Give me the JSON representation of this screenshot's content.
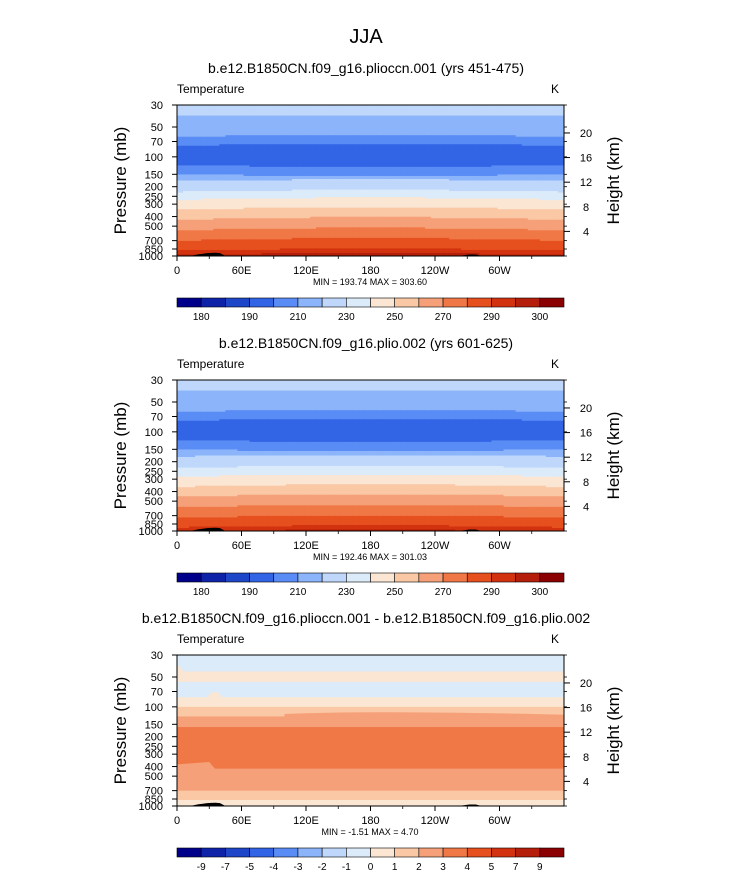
{
  "page_title": "JJA",
  "chart_data": [
    {
      "type": "heatmap",
      "title": "b.e12.B1850CN.f09_g16.plioccn.001 (yrs 451-475)",
      "subtitle_left": "Temperature",
      "units": "K",
      "ylabel_left": "Pressure  (mb)",
      "ylabel_right": "Height  (km)",
      "x_ticks": [
        "0",
        "60E",
        "120E",
        "180",
        "120W",
        "60W"
      ],
      "x_tick_values": [
        0,
        60,
        120,
        180,
        240,
        300
      ],
      "xlim": [
        0,
        360
      ],
      "p_ticks": [
        "30",
        "50",
        "70",
        "100",
        "150",
        "200",
        "250",
        "300",
        "400",
        "500",
        "700",
        "850",
        "1000"
      ],
      "p_tick_values": [
        30,
        50,
        70,
        100,
        150,
        200,
        250,
        300,
        400,
        500,
        700,
        850,
        1000
      ],
      "ylim_mb": [
        1000,
        30
      ],
      "h_ticks": [
        "20",
        "16",
        "12",
        "8",
        "4"
      ],
      "h_tick_values": [
        20,
        16,
        12,
        8,
        4
      ],
      "minmax_label": "MIN = 193.74  MAX = 303.60",
      "colorbar_labels": [
        "180",
        "190",
        "210",
        "230",
        "250",
        "270",
        "290",
        "300"
      ],
      "colorbar_colors": [
        "#00008b",
        "#0f23a8",
        "#1e46c8",
        "#3264e6",
        "#5a8cf5",
        "#8cb4fa",
        "#bed7fa",
        "#dcebfa",
        "#fae6d2",
        "#fac8a5",
        "#f5a078",
        "#f07846",
        "#e6501e",
        "#d2320f",
        "#b41e0a",
        "#8b0000"
      ],
      "profile_levels_mb": [
        30,
        50,
        60,
        70,
        80,
        100,
        120,
        150,
        180,
        200,
        230,
        260,
        300,
        350,
        400,
        450,
        500,
        600,
        700,
        800,
        900,
        1000
      ],
      "profile_values_K": [
        222,
        217,
        212,
        205,
        198,
        196,
        200,
        210,
        222,
        224,
        231,
        238,
        245,
        251,
        257,
        262,
        266,
        274,
        280,
        285,
        291,
        296
      ],
      "profile_amp": 4,
      "topo": {
        "lon": [
          10,
          15,
          20,
          24,
          28,
          32,
          36,
          40,
          45,
          75,
          82,
          260,
          266,
          272,
          278,
          282,
          300,
          303
        ],
        "p": [
          1000,
          985,
          960,
          950,
          935,
          930,
          928,
          935,
          1000,
          1000,
          990,
          1000,
          985,
          965,
          965,
          990,
          1000,
          990
        ]
      }
    },
    {
      "type": "heatmap",
      "title": "b.e12.B1850CN.f09_g16.plio.002 (yrs 601-625)",
      "subtitle_left": "Temperature",
      "units": "K",
      "ylabel_left": "Pressure  (mb)",
      "ylabel_right": "Height  (km)",
      "x_ticks": [
        "0",
        "60E",
        "120E",
        "180",
        "120W",
        "60W"
      ],
      "x_tick_values": [
        0,
        60,
        120,
        180,
        240,
        300
      ],
      "xlim": [
        0,
        360
      ],
      "p_ticks": [
        "30",
        "50",
        "70",
        "100",
        "150",
        "200",
        "250",
        "300",
        "400",
        "500",
        "700",
        "850",
        "1000"
      ],
      "p_tick_values": [
        30,
        50,
        70,
        100,
        150,
        200,
        250,
        300,
        400,
        500,
        700,
        850,
        1000
      ],
      "ylim_mb": [
        1000,
        30
      ],
      "h_ticks": [
        "20",
        "16",
        "12",
        "8",
        "4"
      ],
      "h_tick_values": [
        20,
        16,
        12,
        8,
        4
      ],
      "minmax_label": "MIN = 192.46  MAX = 301.03",
      "colorbar_labels": [
        "180",
        "190",
        "210",
        "230",
        "250",
        "270",
        "290",
        "300"
      ],
      "colorbar_colors": [
        "#00008b",
        "#0f23a8",
        "#1e46c8",
        "#3264e6",
        "#5a8cf5",
        "#8cb4fa",
        "#bed7fa",
        "#dcebfa",
        "#fae6d2",
        "#fac8a5",
        "#f5a078",
        "#f07846",
        "#e6501e",
        "#d2320f",
        "#b41e0a",
        "#8b0000"
      ],
      "profile_levels_mb": [
        30,
        50,
        60,
        70,
        80,
        100,
        120,
        150,
        180,
        200,
        230,
        260,
        300,
        350,
        400,
        450,
        500,
        600,
        700,
        800,
        900,
        1000
      ],
      "profile_values_K": [
        222,
        217,
        212,
        205,
        198,
        196,
        200,
        210,
        221,
        223,
        230,
        236,
        243,
        249,
        255,
        260,
        264,
        272,
        278,
        283,
        289,
        294
      ],
      "profile_amp": 4,
      "topo": {
        "lon": [
          10,
          15,
          20,
          24,
          28,
          32,
          36,
          40,
          45,
          75,
          82,
          260,
          266,
          272,
          278,
          282,
          300,
          303
        ],
        "p": [
          1000,
          985,
          960,
          950,
          935,
          930,
          928,
          935,
          1000,
          1000,
          990,
          1000,
          985,
          965,
          965,
          990,
          1000,
          990
        ]
      }
    },
    {
      "type": "heatmap",
      "title": "b.e12.B1850CN.f09_g16.plioccn.001 - b.e12.B1850CN.f09_g16.plio.002",
      "subtitle_left": "Temperature",
      "units": "K",
      "ylabel_left": "Pressure  (mb)",
      "ylabel_right": "Height  (km)",
      "x_ticks": [
        "0",
        "60E",
        "120E",
        "180",
        "120W",
        "60W"
      ],
      "x_tick_values": [
        0,
        60,
        120,
        180,
        240,
        300
      ],
      "xlim": [
        0,
        360
      ],
      "p_ticks": [
        "30",
        "50",
        "70",
        "100",
        "150",
        "200",
        "250",
        "300",
        "400",
        "500",
        "700",
        "850",
        "1000"
      ],
      "p_tick_values": [
        30,
        50,
        70,
        100,
        150,
        200,
        250,
        300,
        400,
        500,
        700,
        850,
        1000
      ],
      "ylim_mb": [
        1000,
        30
      ],
      "h_ticks": [
        "20",
        "16",
        "12",
        "8",
        "4"
      ],
      "h_tick_values": [
        20,
        16,
        12,
        8,
        4
      ],
      "minmax_label": "MIN =  -1.51  MAX =   4.70",
      "colorbar_labels": [
        "-9",
        "-7",
        "-5",
        "-4",
        "-3",
        "-2",
        "-1",
        "0",
        "1",
        "2",
        "3",
        "4",
        "5",
        "7",
        "9"
      ],
      "colorbar_colors": [
        "#00008b",
        "#0f23a8",
        "#1e46c8",
        "#3264e6",
        "#5a8cf5",
        "#8cb4fa",
        "#bed7fa",
        "#dcebfa",
        "#fae6d2",
        "#fac8a5",
        "#f5a078",
        "#f07846",
        "#e6501e",
        "#d2320f",
        "#b41e0a",
        "#8b0000"
      ],
      "diff_bands": [
        {
          "p_top": 30,
          "p_bot": 44,
          "color": "#dcebfa"
        },
        {
          "p_top": 44,
          "p_bot": 56,
          "color": "#fae6d2"
        },
        {
          "p_top": 56,
          "p_bot": 80,
          "color": "#dcebfa"
        },
        {
          "p_top": 80,
          "p_bot": 100,
          "color": "#fae6d2"
        },
        {
          "p_top": 100,
          "p_bot": 125,
          "color": "#fac8a5"
        },
        {
          "p_top": 125,
          "p_bot": 160,
          "color": "#f5a078"
        },
        {
          "p_top": 160,
          "p_bot": 420,
          "color": "#f07846"
        },
        {
          "p_top": 420,
          "p_bot": 700,
          "color": "#f5a078"
        },
        {
          "p_top": 700,
          "p_bot": 870,
          "color": "#fac8a5"
        },
        {
          "p_top": 870,
          "p_bot": 1000,
          "color": "#fae6d2"
        }
      ],
      "topo": {
        "lon": [
          10,
          15,
          20,
          24,
          28,
          32,
          36,
          40,
          45,
          75,
          82,
          260,
          266,
          272,
          278,
          282,
          300,
          303
        ],
        "p": [
          1000,
          985,
          960,
          950,
          935,
          930,
          928,
          935,
          1000,
          1000,
          990,
          1000,
          985,
          965,
          965,
          990,
          1000,
          990
        ]
      }
    }
  ]
}
